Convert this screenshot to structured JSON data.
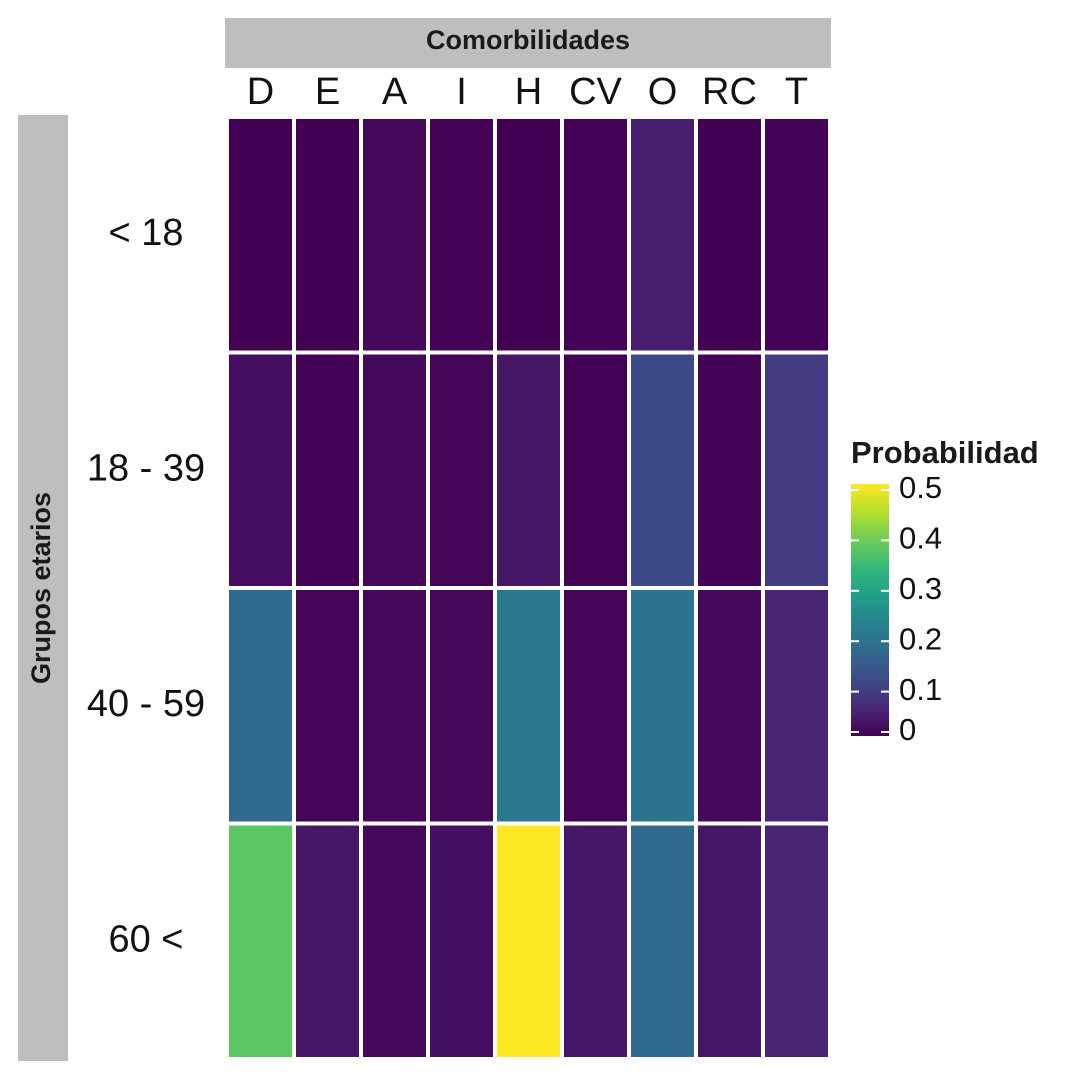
{
  "chart_data": {
    "type": "heatmap",
    "column_strip_label": "Comorbilidades",
    "row_strip_label": "Grupos etarios",
    "columns": [
      "D",
      "E",
      "A",
      "I",
      "H",
      "CV",
      "O",
      "RC",
      "T"
    ],
    "rows": [
      "< 18",
      "18 - 39",
      "40 - 59",
      "60 <"
    ],
    "values": [
      [
        0.0,
        0.0,
        0.01,
        0.003,
        0.0,
        0.003,
        0.04,
        0.0,
        0.003
      ],
      [
        0.02,
        0.003,
        0.01,
        0.005,
        0.03,
        0.002,
        0.11,
        0.003,
        0.09
      ],
      [
        0.17,
        0.005,
        0.01,
        0.01,
        0.2,
        0.005,
        0.19,
        0.01,
        0.05
      ],
      [
        0.37,
        0.03,
        0.01,
        0.02,
        0.5,
        0.03,
        0.17,
        0.03,
        0.05
      ]
    ],
    "legend": {
      "title": "Probabilidad",
      "placement": "right",
      "ticks": [
        "0.5",
        "0.4",
        "0.3",
        "0.2",
        "0.1",
        "0"
      ],
      "tick_values": [
        0.5,
        0.4,
        0.3,
        0.2,
        0.1,
        0
      ],
      "range": [
        0,
        0.5
      ]
    },
    "colorscale": [
      "#440154",
      "#482878",
      "#3E4A89",
      "#31688E",
      "#26828E",
      "#1F9E89",
      "#35B779",
      "#6DCD59",
      "#B4DE2C",
      "#FDE725"
    ]
  }
}
